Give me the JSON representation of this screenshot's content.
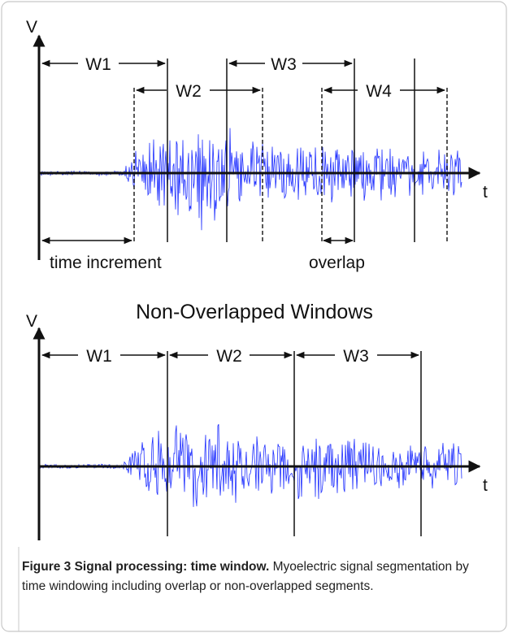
{
  "overlapped": {
    "v_label": "V",
    "t_label": "t",
    "windows": [
      "W1",
      "W2",
      "W3",
      "W4"
    ],
    "time_increment_label": "time increment",
    "overlap_label": "overlap"
  },
  "non_overlapped": {
    "title": "Non-Overlapped Windows",
    "v_label": "V",
    "t_label": "t",
    "windows": [
      "W1",
      "W2",
      "W3"
    ]
  },
  "colors": {
    "signal": "#1f2fff",
    "ink": "#111111",
    "border": "#c8c8c8"
  },
  "caption": {
    "label": "Figure 3 Signal processing: time window.",
    "text": " Myoelectric signal segmentation by time windowing including overlap or non-overlapped segments."
  }
}
